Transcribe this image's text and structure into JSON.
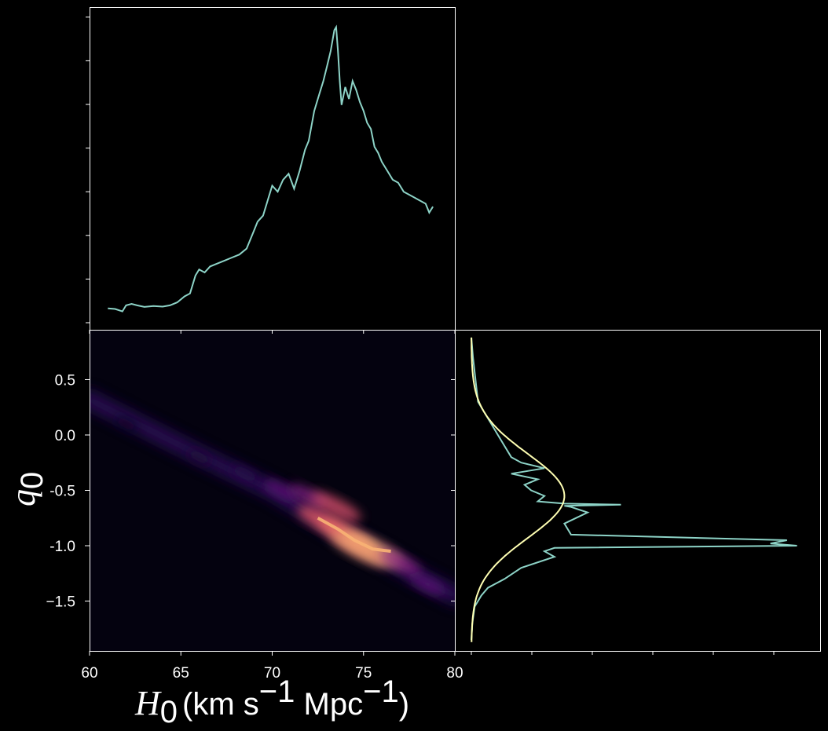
{
  "chart_data": [
    {
      "type": "line",
      "panel": "top-left marginal (H0 posterior)",
      "xlim": [
        60,
        80
      ],
      "color": "#8dd3c7",
      "series": [
        {
          "x": [
            61.0,
            61.4,
            61.8,
            62.0,
            62.3,
            62.6,
            63.0,
            63.5,
            64.0,
            64.4,
            64.8,
            65.2,
            65.5,
            65.8,
            66.0,
            66.3,
            66.6,
            67.0,
            67.4,
            67.8,
            68.2,
            68.6,
            69.0,
            69.2,
            69.5,
            69.8,
            70.0,
            70.3,
            70.6,
            70.9,
            71.2,
            71.5,
            71.8,
            72.0,
            72.3,
            72.6,
            72.8,
            73.0,
            73.2,
            73.4,
            73.5,
            73.6,
            73.7,
            73.8,
            74.0,
            74.2,
            74.4,
            74.6,
            74.8,
            75.0,
            75.2,
            75.4,
            75.6,
            75.8,
            76.0,
            76.3,
            76.6,
            76.9,
            77.2,
            77.5,
            77.8,
            78.1,
            78.4,
            78.6,
            78.8
          ],
          "y": [
            0.04,
            0.038,
            0.03,
            0.05,
            0.055,
            0.05,
            0.045,
            0.048,
            0.046,
            0.05,
            0.06,
            0.08,
            0.09,
            0.15,
            0.17,
            0.16,
            0.18,
            0.19,
            0.2,
            0.21,
            0.22,
            0.24,
            0.3,
            0.33,
            0.35,
            0.41,
            0.45,
            0.43,
            0.47,
            0.49,
            0.44,
            0.5,
            0.57,
            0.6,
            0.7,
            0.76,
            0.8,
            0.85,
            0.9,
            0.97,
            0.98,
            0.9,
            0.8,
            0.72,
            0.78,
            0.74,
            0.8,
            0.77,
            0.73,
            0.7,
            0.66,
            0.64,
            0.58,
            0.56,
            0.53,
            0.5,
            0.47,
            0.46,
            0.43,
            0.42,
            0.41,
            0.4,
            0.39,
            0.36,
            0.38
          ]
        }
      ]
    },
    {
      "type": "heatmap",
      "panel": "bottom-left joint (H0 vs q0)",
      "xlim": [
        60,
        80
      ],
      "ylim": [
        -1.95,
        0.95
      ],
      "xticks": [
        "60",
        "65",
        "70",
        "75",
        "80"
      ],
      "yticks": [
        "0.5",
        "0.0",
        "-0.5",
        "-1.0",
        "−1.5"
      ],
      "yticks_values": [
        0.5,
        0.0,
        -0.5,
        -1.0,
        -1.5
      ],
      "xlabel_symbol": "H",
      "xlabel_subscript": "0",
      "xlabel_units": "(km s",
      "xlabel_exp": "−1",
      "xlabel_units2": " Mpc",
      "xlabel_close": ")",
      "ylabel_symbol": "q",
      "ylabel_subscript": "0",
      "colormap": "magma",
      "background": "#04020f",
      "blobs": [
        {
          "x": 62.0,
          "y": 0.1,
          "weight": 0.05
        },
        {
          "x": 66.0,
          "y": -0.2,
          "weight": 0.1
        },
        {
          "x": 68.5,
          "y": -0.35,
          "weight": 0.15
        },
        {
          "x": 70.5,
          "y": -0.5,
          "weight": 0.35
        },
        {
          "x": 72.0,
          "y": -0.55,
          "weight": 0.45
        },
        {
          "x": 73.5,
          "y": -0.65,
          "weight": 0.7
        },
        {
          "x": 72.8,
          "y": -0.78,
          "weight": 0.75
        },
        {
          "x": 74.0,
          "y": -0.9,
          "weight": 0.8
        },
        {
          "x": 75.5,
          "y": -1.03,
          "weight": 0.95
        },
        {
          "x": 74.8,
          "y": -1.03,
          "weight": 0.9
        },
        {
          "x": 77.0,
          "y": -1.15,
          "weight": 0.5
        },
        {
          "x": 78.5,
          "y": -1.35,
          "weight": 0.35
        }
      ]
    },
    {
      "type": "line",
      "panel": "bottom-right marginal (q0 posterior)",
      "ylim": [
        -1.95,
        0.95
      ],
      "series": [
        {
          "name": "",
          "color": "#8dd3c7",
          "y": [
            0.88,
            0.7,
            0.3,
            0.2,
            0.1,
            0.0,
            -0.1,
            -0.2,
            -0.25,
            -0.3,
            -0.35,
            -0.4,
            -0.45,
            -0.5,
            -0.55,
            -0.6,
            -0.62,
            -0.63,
            -0.64,
            -0.65,
            -0.7,
            -0.8,
            -0.9,
            -0.95,
            -0.98,
            -1.0,
            -1.02,
            -1.05,
            -1.1,
            -1.2,
            -1.3,
            -1.38,
            -1.45,
            -1.55,
            -1.7,
            -1.85
          ],
          "x": [
            0.0,
            0.005,
            0.02,
            0.04,
            0.06,
            0.08,
            0.1,
            0.12,
            0.15,
            0.22,
            0.12,
            0.2,
            0.16,
            0.18,
            0.22,
            0.2,
            0.28,
            0.45,
            0.28,
            0.3,
            0.35,
            0.28,
            0.3,
            0.95,
            0.9,
            0.98,
            0.25,
            0.22,
            0.25,
            0.15,
            0.1,
            0.05,
            0.03,
            0.01,
            0.003,
            0.0
          ]
        },
        {
          "name": "",
          "color": "#ffffb3",
          "gaussian": {
            "mean": -0.55,
            "sigma": 0.38,
            "peak": 0.28
          }
        }
      ]
    }
  ]
}
